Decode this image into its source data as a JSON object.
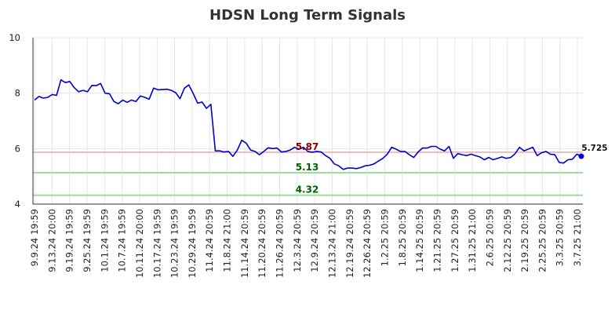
{
  "chart_data": {
    "type": "line",
    "title": "HDSN Long Term Signals",
    "xlabel": "",
    "ylabel": "",
    "ylim": [
      4,
      10
    ],
    "yticks": [
      4,
      6,
      8,
      10
    ],
    "grid": true,
    "legend": "none",
    "x_tick_labels": [
      "9.9.24 19:59",
      "9.13.24 20:00",
      "9.19.24 19:59",
      "9.25.24 19:59",
      "10.1.24 19:59",
      "10.7.24 19:59",
      "10.11.24 20:00",
      "10.17.24 19:59",
      "10.23.24 19:59",
      "10.29.24 19:59",
      "11.4.24 20:59",
      "11.8.24 21:00",
      "11.14.24 20:59",
      "11.20.24 20:59",
      "11.26.24 20:59",
      "12.3.24 20:59",
      "12.9.24 20:59",
      "12.13.24 21:00",
      "12.19.24 20:59",
      "12.26.24 20:59",
      "1.2.25 20:59",
      "1.8.25 20:59",
      "1.14.25 20:59",
      "1.21.25 20:59",
      "1.27.25 20:59",
      "1.31.25 21:00",
      "2.6.25 20:59",
      "2.12.25 20:59",
      "2.19.25 20:59",
      "2.25.25 20:59",
      "3.3.25 20:59",
      "3.7.25 21:00"
    ],
    "series": [
      {
        "color": "#0000cc",
        "values": [
          7.75,
          7.88,
          7.82,
          7.85,
          7.95,
          7.92,
          8.48,
          8.38,
          8.42,
          8.2,
          8.05,
          8.1,
          8.05,
          8.28,
          8.27,
          8.35,
          8.0,
          7.98,
          7.7,
          7.62,
          7.75,
          7.67,
          7.75,
          7.7,
          7.9,
          7.85,
          7.78,
          8.18,
          8.12,
          8.13,
          8.14,
          8.1,
          8.02,
          7.8,
          8.18,
          8.3,
          7.98,
          7.64,
          7.68,
          7.45,
          7.6,
          5.92,
          5.92,
          5.88,
          5.9,
          5.72,
          5.95,
          6.3,
          6.2,
          5.95,
          5.9,
          5.78,
          5.9,
          6.03,
          6.0,
          6.02,
          5.88,
          5.9,
          5.95,
          6.05,
          5.98,
          6.05,
          5.9,
          5.87,
          5.9,
          5.88,
          5.75,
          5.65,
          5.45,
          5.38,
          5.25,
          5.3,
          5.3,
          5.28,
          5.32,
          5.38,
          5.4,
          5.45,
          5.55,
          5.65,
          5.8,
          6.05,
          5.98,
          5.9,
          5.9,
          5.78,
          5.68,
          5.88,
          6.02,
          6.02,
          6.08,
          6.08,
          5.98,
          5.92,
          6.08,
          5.65,
          5.82,
          5.78,
          5.75,
          5.8,
          5.75,
          5.7,
          5.6,
          5.68,
          5.6,
          5.65,
          5.7,
          5.65,
          5.68,
          5.82,
          6.05,
          5.92,
          5.98,
          6.05,
          5.75,
          5.85,
          5.9,
          5.8,
          5.78,
          5.5,
          5.48,
          5.6,
          5.62,
          5.8,
          5.725
        ]
      }
    ],
    "horizontal_lines": [
      {
        "value": 5.87,
        "label": "5.87",
        "color": "#f2b8b8",
        "label_color": "#8b0000"
      },
      {
        "value": 5.13,
        "label": "5.13",
        "color": "#90e090",
        "label_color": "#006400"
      },
      {
        "value": 4.32,
        "label": "4.32",
        "color": "#90e090",
        "label_color": "#006400"
      }
    ],
    "last_point": {
      "value": 5.725,
      "label": "5.725",
      "color": "#0000cc"
    }
  }
}
